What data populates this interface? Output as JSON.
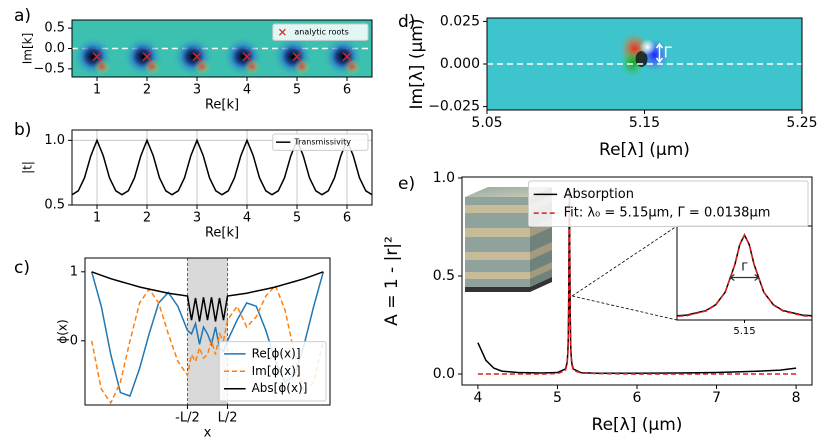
{
  "chart_data": [
    {
      "panel": "a)",
      "type": "scatter",
      "xlabel": "Re[k]",
      "ylabel": "Im[k]",
      "xlim": [
        0.5,
        6.5
      ],
      "ylim": [
        -0.7,
        0.7
      ],
      "xticks": [
        1,
        2,
        3,
        4,
        5,
        6
      ],
      "yticks": [
        {
          "value": -0.5,
          "label": "−0.5"
        },
        {
          "value": 0,
          "label": "0.0"
        },
        0.5
      ],
      "legend": "upper right",
      "series": [
        {
          "name": "analytic roots",
          "color": "#d62728",
          "x": [
            1,
            2,
            3,
            4,
            5,
            6
          ],
          "values": [
            -0.2,
            -0.2,
            -0.2,
            -0.2,
            -0.2,
            -0.2
          ]
        }
      ]
    },
    {
      "panel": "b)",
      "type": "line",
      "xlabel": "Re[k]",
      "ylabel": "|t|",
      "xlim": [
        0.5,
        6.5
      ],
      "ylim": [
        0.5,
        1.08
      ],
      "xticks": [
        1,
        2,
        3,
        4,
        5,
        6
      ],
      "yticks": [
        0.5,
        {
          "value": 1,
          "label": "1.0"
        }
      ],
      "grid": true,
      "legend": "upper right",
      "series": [
        {
          "name": "Transmissivity",
          "color": "#000000",
          "x": [
            0.5,
            0.625,
            0.75,
            0.875,
            1,
            1.125,
            1.25,
            1.375,
            1.5,
            1.625,
            1.75,
            1.875,
            2,
            2.125,
            2.25,
            2.375,
            2.5,
            2.625,
            2.75,
            2.875,
            3,
            3.125,
            3.25,
            3.375,
            3.5,
            3.625,
            3.75,
            3.875,
            4,
            4.125,
            4.25,
            4.375,
            4.5,
            4.625,
            4.75,
            4.875,
            5,
            5.125,
            5.25,
            5.375,
            5.5,
            5.625,
            5.75,
            5.875,
            6,
            6.125,
            6.25,
            6.375,
            6.5
          ],
          "values": [
            0.58,
            0.61,
            0.71,
            0.88,
            1.0,
            0.88,
            0.71,
            0.61,
            0.58,
            0.61,
            0.71,
            0.88,
            1.0,
            0.88,
            0.71,
            0.61,
            0.58,
            0.61,
            0.71,
            0.88,
            1.0,
            0.88,
            0.71,
            0.61,
            0.58,
            0.61,
            0.71,
            0.88,
            1.0,
            0.88,
            0.71,
            0.61,
            0.58,
            0.61,
            0.71,
            0.88,
            1.0,
            0.88,
            0.71,
            0.61,
            0.58,
            0.61,
            0.71,
            0.88,
            1.0,
            0.88,
            0.71,
            0.61,
            0.58
          ]
        }
      ]
    },
    {
      "panel": "c)",
      "type": "line",
      "xlabel": "x",
      "ylabel": "ϕ(x)",
      "xlim": [
        -2.75,
        2.75
      ],
      "ylim": [
        -0.93,
        1.2
      ],
      "xticks": [
        {
          "value": -0.45,
          "label": "-L/2"
        },
        {
          "value": 0.45,
          "label": "L/2"
        }
      ],
      "yticks": [
        0,
        1
      ],
      "legend": "lower right",
      "series": [
        {
          "name": "Re[ϕ(x)]",
          "color": "#1f77b4",
          "x": [
            -2.6,
            -2.385,
            -2.17,
            -1.955,
            -1.74,
            -1.525,
            -1.31,
            -1.095,
            -0.88,
            -0.665,
            -0.45,
            -0.36,
            -0.27,
            -0.18,
            -0.09,
            0,
            0.09,
            0.18,
            0.27,
            0.36,
            0.45,
            0.665,
            0.88,
            1.095,
            1.31,
            1.525,
            1.74,
            1.955,
            2.17,
            2.385,
            2.6
          ],
          "values": [
            1.0,
            0.5,
            -0.2,
            -0.75,
            -0.8,
            -0.4,
            0.1,
            0.55,
            0.7,
            0.5,
            0.15,
            0.1,
            0.25,
            -0.05,
            0.2,
            0.1,
            -0.05,
            0.2,
            -0.1,
            -0.15,
            0.0,
            0.3,
            0.55,
            0.5,
            0.15,
            -0.3,
            -0.6,
            -0.5,
            -0.05,
            0.5,
            1.0
          ]
        },
        {
          "name": "Im[ϕ(x)]",
          "color": "#ff7f0e",
          "linestyle": "dashed",
          "x": [
            -2.6,
            -2.385,
            -2.17,
            -1.955,
            -1.74,
            -1.525,
            -1.31,
            -1.095,
            -0.88,
            -0.665,
            -0.45,
            -0.36,
            -0.27,
            -0.18,
            -0.09,
            0,
            0.09,
            0.18,
            0.27,
            0.36,
            0.45,
            0.665,
            0.88,
            1.095,
            1.31,
            1.525,
            1.74,
            1.955,
            2.17,
            2.385,
            2.6
          ],
          "values": [
            0.0,
            -0.7,
            -0.9,
            -0.6,
            0.0,
            0.55,
            0.75,
            0.55,
            0.1,
            -0.3,
            -0.5,
            -0.2,
            -0.3,
            -0.1,
            -0.25,
            -0.2,
            0.0,
            -0.2,
            0.1,
            0.0,
            0.3,
            0.5,
            0.2,
            0.35,
            0.65,
            0.8,
            0.45,
            -0.2,
            -0.75,
            -0.6,
            0.0
          ]
        },
        {
          "name": "Abs[ϕ(x)]",
          "color": "#000000",
          "x": [
            -2.6,
            -2.385,
            -2.17,
            -1.955,
            -1.74,
            -1.525,
            -1.31,
            -1.095,
            -0.88,
            -0.665,
            -0.45,
            -0.36,
            -0.27,
            -0.18,
            -0.09,
            0,
            0.09,
            0.18,
            0.27,
            0.36,
            0.45,
            0.665,
            0.88,
            1.095,
            1.31,
            1.525,
            1.74,
            1.955,
            2.17,
            2.385,
            2.6
          ],
          "values": [
            1.0,
            0.95,
            0.9,
            0.86,
            0.82,
            0.78,
            0.75,
            0.72,
            0.69,
            0.67,
            0.65,
            0.3,
            0.62,
            0.28,
            0.63,
            0.3,
            0.63,
            0.28,
            0.62,
            0.3,
            0.65,
            0.67,
            0.69,
            0.72,
            0.75,
            0.78,
            0.82,
            0.86,
            0.9,
            0.95,
            1.0
          ]
        }
      ]
    },
    {
      "panel": "d)",
      "type": "heatmap",
      "xlabel": "Re[λ] (μm)",
      "ylabel": "Im[λ] (μm)",
      "xlim": [
        5.05,
        5.25
      ],
      "ylim": [
        -0.027,
        0.027
      ],
      "xticks": [
        5.05,
        5.15,
        5.25
      ],
      "yticks": [
        {
          "value": -0.025,
          "label": "−0.025"
        },
        {
          "value": 0,
          "label": "0.000"
        },
        0.025
      ],
      "annotation": "Γ"
    },
    {
      "panel": "e)",
      "type": "line",
      "xlabel": "Re[λ] (μm)",
      "ylabel": "A = 1 - |r|²",
      "xlim": [
        3.8,
        8.2
      ],
      "ylim": [
        -0.056,
        1.005
      ],
      "xticks": [
        4,
        5,
        6,
        7,
        8
      ],
      "yticks": [
        {
          "value": 0,
          "label": "0.0"
        },
        {
          "value": 0.5,
          "label": "0.5"
        },
        {
          "value": 1,
          "label": "1.0"
        }
      ],
      "legend": "upper right",
      "series": [
        {
          "name": "Absorption",
          "color": "#000000",
          "x": [
            4.0,
            4.1,
            4.2,
            4.3,
            4.5,
            4.8,
            5.0,
            5.1,
            5.12,
            5.13,
            5.135,
            5.14,
            5.145,
            5.1475,
            5.15,
            5.1525,
            5.155,
            5.16,
            5.165,
            5.17,
            5.18,
            5.2,
            5.3,
            5.5,
            6.0,
            6.5,
            7.0,
            7.5,
            7.8,
            8.0
          ],
          "values": [
            0.16,
            0.07,
            0.03,
            0.015,
            0.008,
            0.005,
            0.008,
            0.025,
            0.055,
            0.105,
            0.17,
            0.31,
            0.62,
            0.84,
            0.95,
            0.84,
            0.62,
            0.31,
            0.17,
            0.105,
            0.055,
            0.025,
            0.006,
            0.004,
            0.004,
            0.005,
            0.008,
            0.014,
            0.02,
            0.03
          ]
        },
        {
          "name": "Fit: λ₀ = 5.15μm, Γ = 0.0138μm",
          "color": "#e41a1c",
          "linestyle": "dashed",
          "x": [
            4.0,
            4.1,
            4.2,
            4.3,
            4.5,
            4.8,
            5.0,
            5.1,
            5.12,
            5.13,
            5.135,
            5.14,
            5.145,
            5.1475,
            5.15,
            5.1525,
            5.155,
            5.16,
            5.165,
            5.17,
            5.18,
            5.2,
            5.3,
            5.5,
            6.0,
            6.5,
            7.0,
            7.5,
            7.8,
            8.0
          ],
          "values": [
            0,
            0,
            0,
            0,
            0,
            0,
            0.002,
            0.018,
            0.048,
            0.1,
            0.166,
            0.31,
            0.62,
            0.84,
            0.95,
            0.84,
            0.62,
            0.31,
            0.166,
            0.1,
            0.048,
            0.018,
            0.005,
            0.002,
            0,
            0,
            0,
            0,
            0,
            0
          ]
        }
      ],
      "inset": {
        "xlim": [
          5.115,
          5.185
        ],
        "ylim": [
          0,
          1.05
        ],
        "xticks": [
          5.15
        ],
        "annotation": "Γ"
      }
    }
  ]
}
